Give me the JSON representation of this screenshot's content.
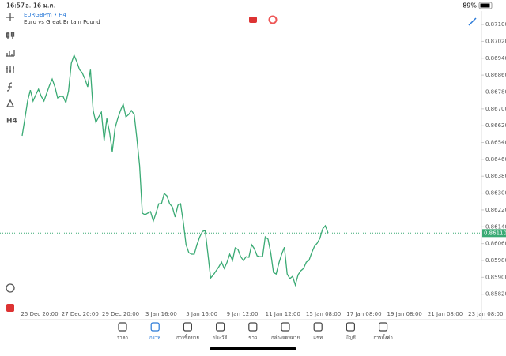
{
  "status_bar": {
    "time": "16:57",
    "date": "อ. 16 ม.ค.",
    "battery": "89%"
  },
  "toolbar": {
    "timeframe": "H4"
  },
  "chart_data": {
    "type": "line",
    "title": "EURGBPm • H4",
    "subtitle": "Euro vs Great Britain Pound",
    "x_tick_labels": [
      "25 Dec 20:00",
      "27 Dec 20:00",
      "29 Dec 20:00",
      "3 Jan 16:00",
      "5 Jan 16:00",
      "9 Jan 12:00",
      "11 Jan 12:00",
      "15 Jan 08:00",
      "17 Jan 08:00",
      "19 Jan 08:00",
      "21 Jan 08:00",
      "23 Jan 08:00"
    ],
    "series": [
      {
        "name": "EURGBPm",
        "color": "#3aaa74",
        "values": [
          0.86572,
          0.86654,
          0.86737,
          0.86789,
          0.86737,
          0.86767,
          0.86793,
          0.86759,
          0.86737,
          0.86774,
          0.86811,
          0.86841,
          0.86804,
          0.86752,
          0.86759,
          0.86759,
          0.86729,
          0.86785,
          0.86916,
          0.86954,
          0.86924,
          0.86886,
          0.86871,
          0.86841,
          0.86804,
          0.86886,
          0.86692,
          0.86635,
          0.86662,
          0.86684,
          0.86549,
          0.86654,
          0.86587,
          0.86497,
          0.86609,
          0.86654,
          0.86692,
          0.86722,
          0.86662,
          0.86673,
          0.86692,
          0.86673,
          0.8656,
          0.86429,
          0.86205,
          0.86197,
          0.86205,
          0.86212,
          0.86167,
          0.86205,
          0.86249,
          0.86249,
          0.86298,
          0.86287,
          0.86249,
          0.86234,
          0.86186,
          0.86242,
          0.86249,
          0.8616,
          0.86055,
          0.86017,
          0.8601,
          0.8601,
          0.86055,
          0.86092,
          0.86118,
          0.86122,
          0.8601,
          0.85897,
          0.85912,
          0.85931,
          0.8595,
          0.85972,
          0.85942,
          0.85972,
          0.8601,
          0.8598,
          0.8604,
          0.86032,
          0.85998,
          0.8598,
          0.85998,
          0.85995,
          0.86055,
          0.86036,
          0.86002,
          0.85998,
          0.85998,
          0.86092,
          0.86081,
          0.86017,
          0.85923,
          0.85916,
          0.85968,
          0.8601,
          0.86043,
          0.85916,
          0.85894,
          0.85905,
          0.85864,
          0.85912,
          0.85931,
          0.85942,
          0.85972,
          0.8598,
          0.86017,
          0.86047,
          0.86062,
          0.86085,
          0.8613,
          0.86145,
          0.8611
        ]
      }
    ],
    "ylim": [
      0.85699,
      0.87164
    ],
    "yticks": [
      {
        "value": 0.871,
        "label": "0.87100"
      },
      {
        "value": 0.8702,
        "label": "0.87020"
      },
      {
        "value": 0.8694,
        "label": "0.86940"
      },
      {
        "value": 0.8686,
        "label": "0.86860"
      },
      {
        "value": 0.8678,
        "label": "0.86780"
      },
      {
        "value": 0.867,
        "label": "0.86700"
      },
      {
        "value": 0.8662,
        "label": "0.86620"
      },
      {
        "value": 0.8654,
        "label": "0.86540"
      },
      {
        "value": 0.8646,
        "label": "0.86460"
      },
      {
        "value": 0.8638,
        "label": "0.86380"
      },
      {
        "value": 0.863,
        "label": "0.86300"
      },
      {
        "value": 0.8622,
        "label": "0.86220"
      },
      {
        "value": 0.8614,
        "label": "0.86140"
      },
      {
        "value": 0.8606,
        "label": "0.86060"
      },
      {
        "value": 0.8598,
        "label": "0.85980"
      },
      {
        "value": 0.859,
        "label": "0.85900"
      },
      {
        "value": 0.8582,
        "label": "0.85820"
      }
    ],
    "current_price": {
      "value": 0.8611,
      "label": "0.86110"
    },
    "grid": false
  },
  "nav": [
    "ราคา",
    "กราฟ",
    "การซื้อขาย",
    "ประวัติ",
    "ข่าว",
    "กล่องจดหมาย",
    "แชท",
    "บัญชี",
    "การตั้งค่า"
  ],
  "nav_active": 1
}
